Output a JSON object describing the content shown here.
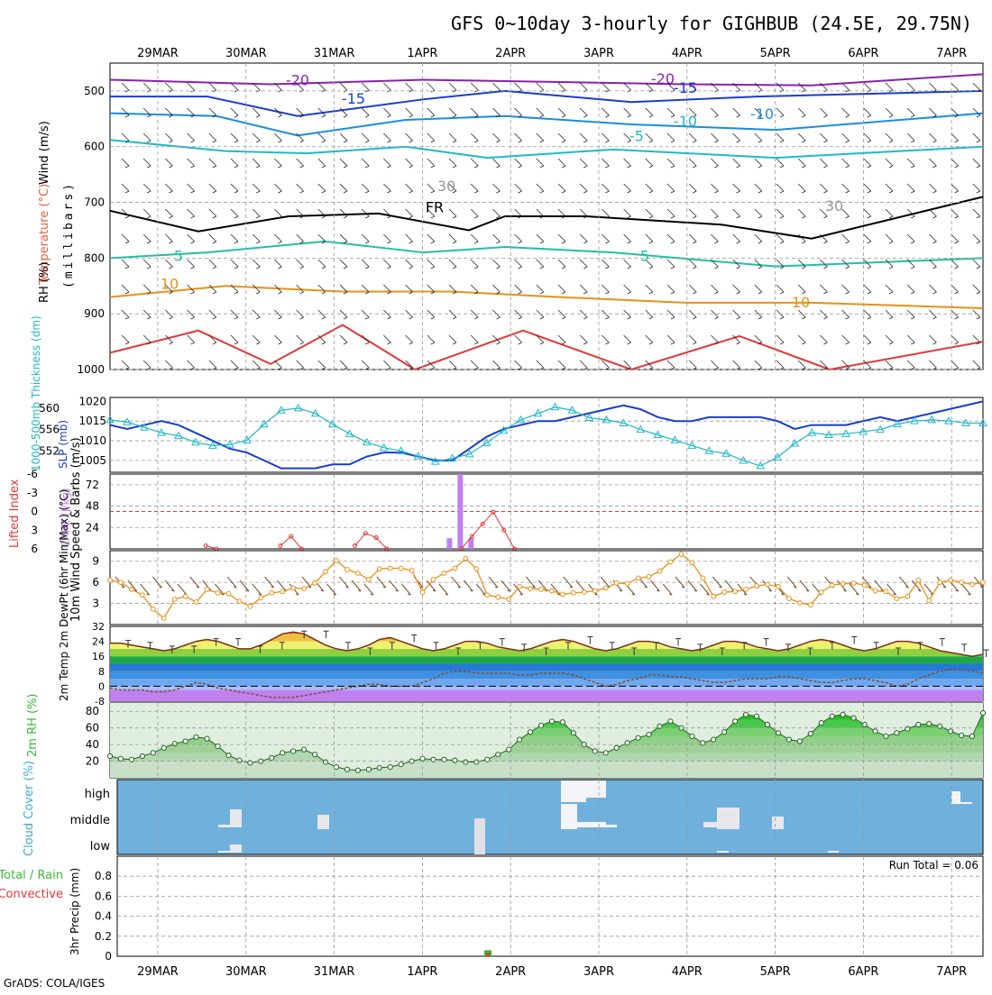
{
  "title": "GFS 0~10day 3-hourly for GIGHBUB (24.5E, 29.75N)",
  "credit": "GrADS: COLA/IGES",
  "date_labels": [
    "29MAR",
    "30MAR",
    "31MAR",
    "1APR",
    "2APR",
    "3APR",
    "4APR",
    "5APR",
    "6APR",
    "7APR"
  ],
  "colors": {
    "cyan": "#20b8c8",
    "blue": "#1a3ccc",
    "orange": "#e89018",
    "purple": "#c080f0",
    "red": "#e03838",
    "green": "#38b838",
    "cloud_bg": "#6fb0dc",
    "brown": "#7a5030"
  },
  "chart_data": [
    {
      "id": "upper-air",
      "type": "heatmap",
      "ylabel_wind": "Wind (m/s)",
      "ylabel_temp": "Temperature (°C)",
      "ylabel_rh": "RH (%)",
      "ylabel_units": "(millibars)",
      "y_ticks": [
        "500",
        "600",
        "700",
        "800",
        "900",
        "1000"
      ],
      "y_values": [
        500,
        600,
        700,
        800,
        900,
        1000
      ],
      "ylim": [
        1000,
        450
      ],
      "contour_labels": [
        "-20",
        "-20",
        "-15",
        "-15",
        "-10",
        "-10",
        "-5",
        "5",
        "5",
        "10",
        "10",
        "FR",
        "30",
        "30"
      ]
    },
    {
      "id": "slp-thickness",
      "type": "line",
      "ylabel_left": "1000-500mb Thickness (dm)",
      "ylabel_right": "SLP (mb)",
      "ticks_left": [
        "560",
        "556",
        "552"
      ],
      "ticks_right": [
        "1020",
        "1015",
        "1010",
        "1005"
      ],
      "series": [
        {
          "name": "SLP (mb)",
          "values": [
            1014,
            1013,
            1014,
            1015,
            1014,
            1012,
            1010,
            1008,
            1007,
            1005,
            1003,
            1003,
            1003,
            1004,
            1004,
            1006,
            1007,
            1007,
            1006,
            1005,
            1005,
            1008,
            1011,
            1013,
            1014,
            1015,
            1015,
            1016,
            1017,
            1018,
            1019,
            1018,
            1016,
            1015,
            1015,
            1016,
            1016,
            1016,
            1016,
            1015,
            1013,
            1014,
            1014,
            1014,
            1015,
            1016,
            1015,
            1016,
            1017,
            1018,
            1019,
            1020
          ]
        },
        {
          "name": "1000-500mb Thickness (dm)",
          "values": [
            557.8,
            557.4,
            556.4,
            555.4,
            554.8,
            553.6,
            553.0,
            553.2,
            554.0,
            557.0,
            559.6,
            560.0,
            559.0,
            557.0,
            555.2,
            553.6,
            552.6,
            552.0,
            551.0,
            550.0,
            550.6,
            551.4,
            553.5,
            555.8,
            557.8,
            559.0,
            560.2,
            559.6,
            558.2,
            557.8,
            557.2,
            556.0,
            555.0,
            554.0,
            553.0,
            552.0,
            551.5,
            550.2,
            549.2,
            550.8,
            553.4,
            555.4,
            555.0,
            555.2,
            555.6,
            556.0,
            557.0,
            557.6,
            557.8,
            557.6,
            557.2,
            557.2
          ]
        }
      ]
    },
    {
      "id": "cape-li",
      "type": "bar",
      "ylabel_left": "Lifted Index",
      "ylabel_right": "CAPE (J/kg)",
      "ticks_left": [
        "-6",
        "-3",
        "0",
        "3",
        "6"
      ],
      "ticks_right": [
        "72",
        "48",
        "24"
      ],
      "cape_values": [
        0,
        0,
        0,
        0,
        0,
        0,
        0,
        0,
        0,
        0,
        0,
        0,
        0,
        0,
        0,
        0,
        0,
        0,
        0,
        0,
        0,
        0,
        0,
        0,
        0,
        0,
        0,
        0,
        0,
        0,
        0,
        0,
        0,
        0,
        0,
        0,
        0,
        0,
        0,
        0,
        0,
        0,
        0,
        0,
        0,
        0,
        0,
        0,
        0,
        0,
        0,
        0,
        0,
        0,
        0,
        0,
        0,
        0,
        0,
        0,
        0,
        0,
        0,
        0,
        0,
        0,
        0,
        0,
        0,
        0,
        0,
        0,
        0,
        0,
        0,
        0,
        0,
        0,
        0,
        0,
        0,
        0,
        0
      ],
      "cape_bars": [
        {
          "x": 31.5,
          "v": 12
        },
        {
          "x": 32.5,
          "v": 84
        },
        {
          "x": 33.5,
          "v": 12
        }
      ],
      "li_values": [
        null,
        null,
        null,
        null,
        null,
        null,
        null,
        null,
        null,
        5.5,
        6,
        null,
        null,
        null,
        null,
        null,
        5.5,
        4,
        6,
        null,
        null,
        null,
        null,
        5.5,
        3.5,
        4.2,
        6,
        null,
        null,
        null,
        null,
        null,
        null,
        6,
        4,
        2,
        0.1,
        3,
        6,
        null,
        null,
        null,
        null,
        null,
        null,
        null,
        null,
        null,
        null,
        null,
        null,
        null,
        null,
        null,
        null,
        null,
        null,
        null,
        null,
        null,
        null,
        null,
        null,
        null,
        null,
        null,
        null,
        null,
        null,
        null,
        null,
        null,
        null,
        null,
        null,
        null,
        null,
        null,
        null,
        null,
        null,
        null,
        null
      ]
    },
    {
      "id": "wind10m",
      "type": "line",
      "ylabel": "10m Wind Speed & Barbs (m/s)",
      "ticks": [
        "9",
        "6",
        "3"
      ],
      "ylim": [
        0,
        10.5
      ],
      "values": [
        6.3,
        6.0,
        5.0,
        4.2,
        2.2,
        0.9,
        3.6,
        4.0,
        3.2,
        5.0,
        4.5,
        4.4,
        3.3,
        2.6,
        3.8,
        4.5,
        4.7,
        5.2,
        5.1,
        5.9,
        7.5,
        9.1,
        7.8,
        7.3,
        6.4,
        7.9,
        8.0,
        8.0,
        7.7,
        4.6,
        6.4,
        7.3,
        8.0,
        9.4,
        7.9,
        4.2,
        3.9,
        3.6,
        5.4,
        5.1,
        5.0,
        4.8,
        4.3,
        4.5,
        4.6,
        4.8,
        5.2,
        5.9,
        5.8,
        6.6,
        6.8,
        7.6,
        8.9,
        10.0,
        8.8,
        6.6,
        4.0,
        4.6,
        4.7,
        5.0,
        5.5,
        5.7,
        5.4,
        3.7,
        3.1,
        2.8,
        4.6,
        5.6,
        5.8,
        5.9,
        5.6,
        4.8,
        4.7,
        3.7,
        4.0,
        6.3,
        3.4,
        6.0,
        6.3,
        6.0,
        5.7,
        6.0
      ]
    },
    {
      "id": "temperature",
      "type": "area",
      "ylabel": "2m Temp 2m DewPt (6hr Min/Max) (°C)",
      "ticks": [
        "32",
        "24",
        "16",
        "8",
        "0",
        "-8"
      ],
      "ylim": [
        -8,
        32
      ],
      "temp_values": [
        23,
        23,
        22,
        21,
        20,
        19,
        20,
        22,
        24,
        25,
        24,
        22,
        20,
        20,
        22,
        25,
        28,
        29,
        28,
        25,
        22,
        20,
        19,
        20,
        22,
        25,
        26,
        24,
        22,
        20,
        19,
        20,
        22,
        24,
        24,
        23,
        21,
        20,
        19,
        20,
        22,
        24,
        25,
        24,
        22,
        20,
        19,
        20,
        22,
        24,
        24,
        23,
        21,
        20,
        19,
        20,
        22,
        24,
        24,
        23,
        21,
        20,
        19,
        20,
        22,
        24,
        25,
        24,
        22,
        20,
        19,
        20,
        22,
        24,
        24,
        23,
        21,
        19,
        18,
        17,
        16,
        17
      ],
      "dew_values": [
        -1,
        -2,
        -2,
        -2,
        -3,
        -3,
        -2,
        0,
        2,
        1,
        -1,
        -2,
        -3,
        -4,
        -5,
        -6,
        -6,
        -6,
        -5,
        -4,
        -3,
        -2,
        -1,
        0,
        1,
        1,
        0,
        0,
        0,
        2,
        4,
        7,
        8,
        8,
        7,
        7,
        7,
        7,
        6,
        6,
        7,
        7,
        7,
        6,
        4,
        2,
        0,
        1,
        3,
        4,
        6,
        6,
        5,
        5,
        4,
        3,
        2,
        2,
        3,
        4,
        4,
        4,
        5,
        5,
        4,
        3,
        2,
        2,
        3,
        4,
        4,
        3,
        2,
        0,
        1,
        4,
        6,
        8,
        9,
        9,
        8,
        7
      ]
    },
    {
      "id": "rh2m",
      "type": "area",
      "ylabel": "2m RH (%)",
      "ticks": [
        "80",
        "60",
        "40",
        "20"
      ],
      "ylim": [
        0,
        90
      ],
      "values": [
        26,
        23,
        22,
        26,
        30,
        36,
        41,
        44,
        49,
        47,
        38,
        27,
        21,
        18,
        20,
        24,
        30,
        32,
        34,
        28,
        19,
        13,
        10,
        9,
        10,
        12,
        13,
        16,
        20,
        23,
        22,
        22,
        21,
        19,
        19,
        22,
        28,
        34,
        46,
        55,
        63,
        68,
        67,
        54,
        40,
        32,
        30,
        36,
        42,
        48,
        52,
        62,
        68,
        60,
        50,
        42,
        46,
        55,
        68,
        76,
        74,
        64,
        54,
        46,
        44,
        53,
        66,
        74,
        76,
        72,
        64,
        56,
        50,
        54,
        59,
        64,
        65,
        62,
        56,
        51,
        50,
        78
      ]
    },
    {
      "id": "cloud",
      "type": "heatmap",
      "ylabel": "Cloud Cover (%)",
      "levels": [
        "high",
        "middle",
        "low"
      ]
    },
    {
      "id": "precip",
      "type": "bar",
      "ylabel_left1": "Total / Rain",
      "ylabel_left2": "Convective",
      "ylabel": "3hr Precip (mm)",
      "ticks": [
        "0.8",
        "0.6",
        "0.4",
        "0.2",
        "0"
      ],
      "ylim": [
        0,
        1.0
      ],
      "run_total": "Run Total = 0.06",
      "bars": [
        {
          "x": 33.0,
          "total": 0.06,
          "conv": 0.03
        }
      ]
    }
  ]
}
